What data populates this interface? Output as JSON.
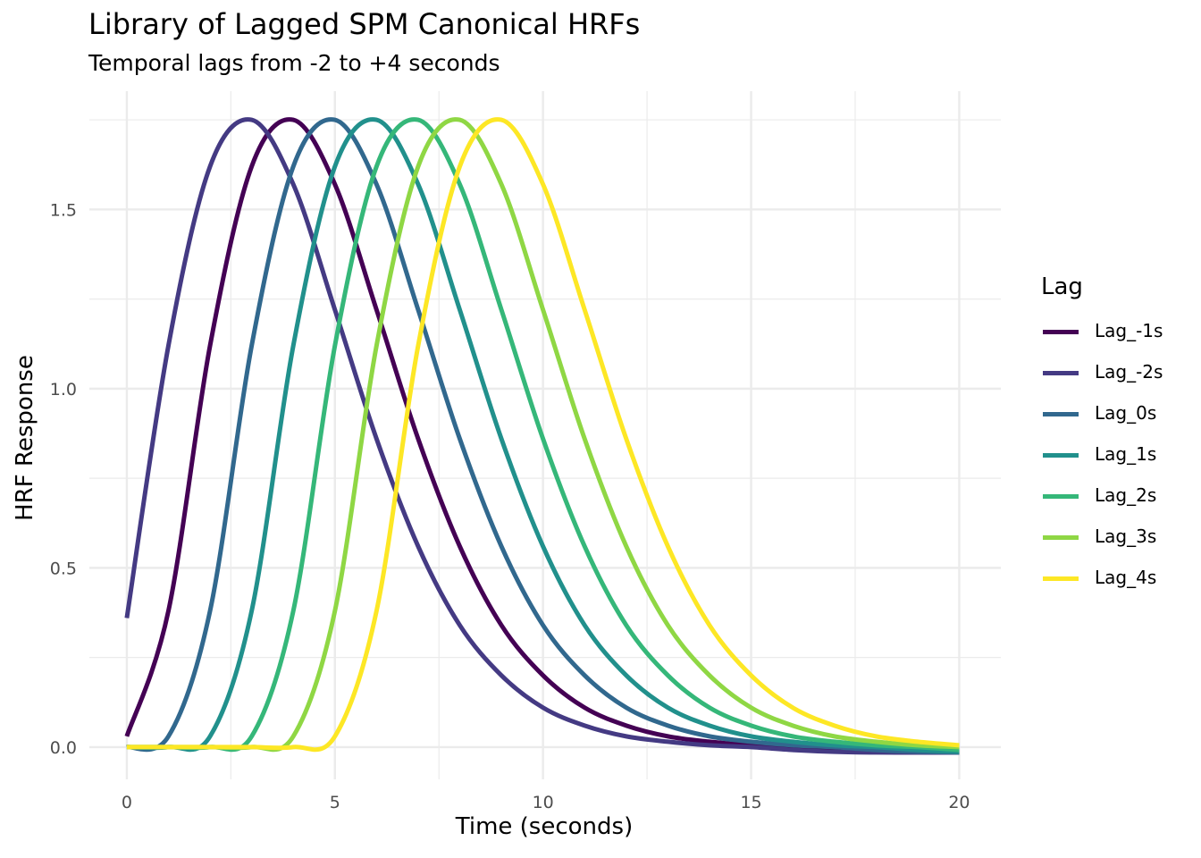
{
  "chart_data": {
    "type": "line",
    "title": "Library of Lagged SPM Canonical HRFs",
    "subtitle": "Temporal lags from -2 to +4 seconds",
    "xlabel": "Time (seconds)",
    "ylabel": "HRF Response",
    "xlim": [
      -0.9,
      21
    ],
    "ylim": [
      -0.09,
      1.83
    ],
    "x_ticks": [
      0,
      5,
      10,
      15,
      20
    ],
    "x_tick_labels": [
      "0",
      "5",
      "10",
      "15",
      "20"
    ],
    "y_ticks": [
      0,
      0.5,
      1,
      1.5
    ],
    "y_tick_labels": [
      "0.0",
      "0.5",
      "1.0",
      "1.5"
    ],
    "grid": true,
    "legend": {
      "title": "Lag",
      "position": "right"
    },
    "series": [
      {
        "name": "Lag_-1s",
        "color": "#440154",
        "x": [
          0,
          1,
          2,
          3,
          4,
          5,
          6,
          7,
          8,
          9,
          10,
          11,
          12,
          13,
          14,
          15,
          16,
          17,
          18,
          19,
          20
        ],
        "y": [
          0.03,
          0.38,
          1.12,
          1.62,
          1.75,
          1.57,
          1.22,
          0.86,
          0.56,
          0.34,
          0.2,
          0.11,
          0.06,
          0.03,
          0.015,
          0.005,
          0.0,
          -0.008,
          -0.013,
          -0.015,
          -0.015
        ]
      },
      {
        "name": "Lag_-2s",
        "color": "#443A83",
        "x": [
          0,
          1,
          2,
          3,
          4,
          5,
          6,
          7,
          8,
          9,
          10,
          11,
          12,
          13,
          14,
          15,
          16,
          17,
          18,
          19,
          20
        ],
        "y": [
          0.36,
          1.12,
          1.62,
          1.75,
          1.57,
          1.22,
          0.86,
          0.56,
          0.34,
          0.2,
          0.11,
          0.06,
          0.03,
          0.015,
          0.005,
          0.0,
          -0.008,
          -0.013,
          -0.015,
          -0.015,
          -0.015
        ]
      },
      {
        "name": "Lag_0s",
        "color": "#31688E",
        "x": [
          0,
          1,
          2,
          3,
          4,
          5,
          6,
          7,
          8,
          9,
          10,
          11,
          12,
          13,
          14,
          15,
          16,
          17,
          18,
          19,
          20
        ],
        "y": [
          0,
          0.03,
          0.38,
          1.12,
          1.62,
          1.75,
          1.57,
          1.22,
          0.86,
          0.56,
          0.34,
          0.2,
          0.11,
          0.06,
          0.03,
          0.015,
          0.005,
          0.0,
          -0.008,
          -0.013,
          -0.015
        ]
      },
      {
        "name": "Lag_1s",
        "color": "#21908C",
        "x": [
          0,
          1,
          2,
          3,
          4,
          5,
          6,
          7,
          8,
          9,
          10,
          11,
          12,
          13,
          14,
          15,
          16,
          17,
          18,
          19,
          20
        ],
        "y": [
          0,
          0,
          0.03,
          0.38,
          1.12,
          1.62,
          1.75,
          1.57,
          1.22,
          0.86,
          0.56,
          0.34,
          0.2,
          0.11,
          0.06,
          0.03,
          0.015,
          0.005,
          0.0,
          -0.008,
          -0.013
        ]
      },
      {
        "name": "Lag_2s",
        "color": "#35B779",
        "x": [
          0,
          1,
          2,
          3,
          4,
          5,
          6,
          7,
          8,
          9,
          10,
          11,
          12,
          13,
          14,
          15,
          16,
          17,
          18,
          19,
          20
        ],
        "y": [
          0,
          0,
          0,
          0.03,
          0.38,
          1.12,
          1.62,
          1.75,
          1.57,
          1.22,
          0.86,
          0.56,
          0.34,
          0.2,
          0.11,
          0.06,
          0.03,
          0.015,
          0.005,
          0.0,
          -0.008
        ]
      },
      {
        "name": "Lag_3s",
        "color": "#8FD744",
        "x": [
          0,
          1,
          2,
          3,
          4,
          5,
          6,
          7,
          8,
          9,
          10,
          11,
          12,
          13,
          14,
          15,
          16,
          17,
          18,
          19,
          20
        ],
        "y": [
          0,
          0,
          0,
          0,
          0.03,
          0.38,
          1.12,
          1.62,
          1.75,
          1.57,
          1.22,
          0.86,
          0.56,
          0.34,
          0.2,
          0.11,
          0.06,
          0.03,
          0.015,
          0.005,
          0.0
        ]
      },
      {
        "name": "Lag_4s",
        "color": "#FDE725",
        "x": [
          0,
          1,
          2,
          3,
          4,
          5,
          6,
          7,
          8,
          9,
          10,
          11,
          12,
          13,
          14,
          15,
          16,
          17,
          18,
          19,
          20
        ],
        "y": [
          0,
          0,
          0,
          0,
          0,
          0.03,
          0.38,
          1.12,
          1.62,
          1.75,
          1.57,
          1.22,
          0.86,
          0.56,
          0.34,
          0.2,
          0.11,
          0.06,
          0.03,
          0.015,
          0.005
        ]
      }
    ]
  }
}
